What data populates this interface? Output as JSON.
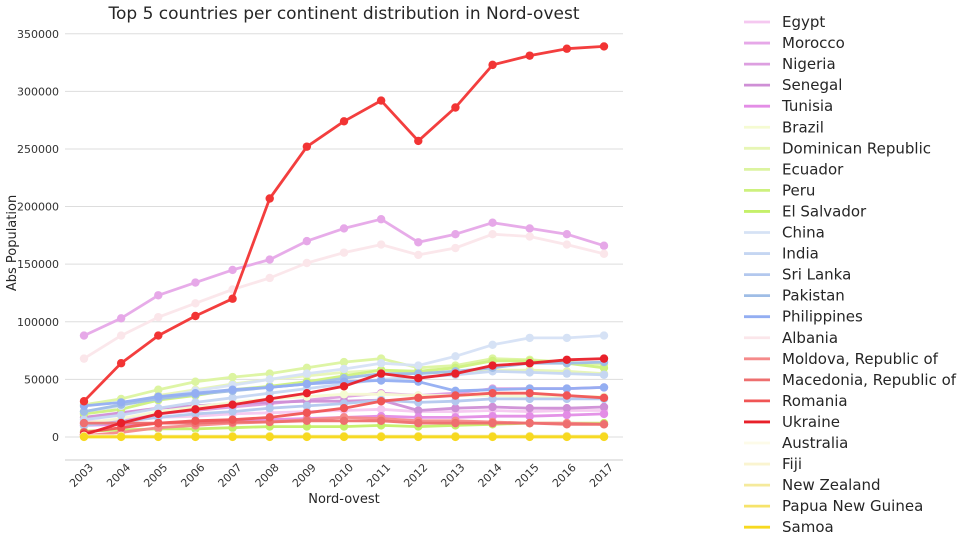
{
  "chart_data": {
    "type": "line",
    "title": "Top 5 countries per continent distribution in Nord-ovest",
    "xlabel": "Nord-ovest",
    "ylabel": "Abs Population",
    "x": [
      "2003",
      "2004",
      "2005",
      "2006",
      "2007",
      "2008",
      "2009",
      "2010",
      "2011",
      "2012",
      "2013",
      "2014",
      "2015",
      "2016",
      "2017"
    ],
    "ylim": [
      -20000,
      355000
    ],
    "yticks": [
      0,
      50000,
      100000,
      150000,
      200000,
      250000,
      300000,
      350000
    ],
    "ytick_labels": [
      "0",
      "50000",
      "100000",
      "150000",
      "200000",
      "250000",
      "300000",
      "350000"
    ],
    "grid": "horizontal",
    "legend_position": "right",
    "series": [
      {
        "name": "Egypt",
        "color": "#f5c8f0",
        "values": [
          13000,
          15000,
          17000,
          18000,
          20000,
          21000,
          22000,
          23000,
          24000,
          22000,
          22000,
          23000,
          22000,
          23000,
          23000
        ]
      },
      {
        "name": "Morocco",
        "color": "#e6a8e8",
        "values": [
          88000,
          103000,
          123000,
          134000,
          145000,
          154000,
          170000,
          181000,
          189000,
          169000,
          176000,
          186000,
          181000,
          176000,
          166000
        ]
      },
      {
        "name": "Nigeria",
        "color": "#dd9fe0",
        "values": [
          12000,
          15000,
          20000,
          23000,
          26000,
          29000,
          32000,
          35000,
          38000,
          36000,
          38000,
          42000,
          42000,
          42000,
          43000
        ]
      },
      {
        "name": "Senegal",
        "color": "#cf8fd6",
        "values": [
          17000,
          21000,
          25000,
          27000,
          29000,
          30000,
          31000,
          31000,
          32000,
          23000,
          25000,
          26000,
          25000,
          25000,
          26000
        ]
      },
      {
        "name": "Tunisia",
        "color": "#e38de6",
        "values": [
          10000,
          11000,
          12000,
          13000,
          14000,
          15000,
          16000,
          17000,
          18000,
          17000,
          17000,
          18000,
          18000,
          19000,
          20000
        ]
      },
      {
        "name": "Brazil",
        "color": "#f5fbd2",
        "values": [
          12000,
          16000,
          22000,
          26000,
          30000,
          33000,
          35000,
          37000,
          37000,
          36000,
          36000,
          36000,
          35000,
          35000,
          35000
        ]
      },
      {
        "name": "Dominican Republic",
        "color": "#e7f6b5",
        "values": [
          22000,
          27000,
          36000,
          41000,
          46000,
          50000,
          53000,
          56000,
          58000,
          55000,
          57000,
          58000,
          58000,
          57000,
          55000
        ]
      },
      {
        "name": "Ecuador",
        "color": "#dcf4a0",
        "values": [
          28000,
          33000,
          41000,
          48000,
          52000,
          55000,
          60000,
          65000,
          68000,
          60000,
          62000,
          68000,
          67000,
          65000,
          63000
        ]
      },
      {
        "name": "Peru",
        "color": "#cdf17e",
        "values": [
          20000,
          24000,
          32000,
          36000,
          41000,
          44000,
          48000,
          53000,
          58000,
          57000,
          60000,
          66000,
          66000,
          64000,
          60000
        ]
      },
      {
        "name": "El Salvador",
        "color": "#c5f06a",
        "values": [
          5000,
          6000,
          7000,
          7000,
          8000,
          9000,
          9000,
          9000,
          10000,
          9000,
          10000,
          11000,
          12000,
          12000,
          12000
        ]
      },
      {
        "name": "China",
        "color": "#d6e2f5",
        "values": [
          22000,
          27000,
          34000,
          40000,
          45000,
          50000,
          55000,
          59000,
          64000,
          62000,
          70000,
          80000,
          86000,
          86000,
          88000
        ]
      },
      {
        "name": "India",
        "color": "#c5d6f2",
        "values": [
          15000,
          19000,
          25000,
          30000,
          34000,
          38000,
          42000,
          46000,
          50000,
          52000,
          54000,
          57000,
          56000,
          55000,
          54000
        ]
      },
      {
        "name": "Sri Lanka",
        "color": "#b3c8ee",
        "values": [
          10000,
          13000,
          17000,
          20000,
          22000,
          25000,
          27000,
          29000,
          32000,
          30000,
          31000,
          33000,
          33000,
          33000,
          33000
        ]
      },
      {
        "name": "Pakistan",
        "color": "#9fbde6",
        "values": [
          22000,
          28000,
          33000,
          37000,
          40000,
          43000,
          46000,
          51000,
          55000,
          55000,
          57000,
          60000,
          64000,
          64000,
          65000
        ]
      },
      {
        "name": "Philippines",
        "color": "#93aef2",
        "values": [
          27000,
          30000,
          35000,
          38000,
          41000,
          43000,
          46000,
          48000,
          49000,
          48000,
          40000,
          41000,
          42000,
          42000,
          43000
        ]
      },
      {
        "name": "Albania",
        "color": "#fbe6ea",
        "values": [
          68000,
          88000,
          104000,
          116000,
          128000,
          138000,
          151000,
          160000,
          167000,
          158000,
          164000,
          176000,
          174000,
          167000,
          159000
        ]
      },
      {
        "name": "Moldova, Republic of",
        "color": "#f58a8a",
        "values": [
          1000,
          4000,
          8000,
          10000,
          12000,
          13000,
          15000,
          17000,
          16000,
          14000,
          14000,
          13000,
          12000,
          12000,
          11000
        ]
      },
      {
        "name": "Macedonia, Republic of",
        "color": "#ee6f6f",
        "values": [
          12000,
          12000,
          12000,
          12000,
          13000,
          13000,
          14000,
          14000,
          14000,
          12000,
          12000,
          12000,
          12000,
          11000,
          11000
        ]
      },
      {
        "name": "Romania",
        "color": "#f05555",
        "values": [
          4000,
          8000,
          12000,
          14000,
          15000,
          17000,
          21000,
          25000,
          31000,
          34000,
          36000,
          38000,
          38000,
          36000,
          34000
        ]
      },
      {
        "name": "Ukraine",
        "color": "#e8202a",
        "values": [
          2000,
          12000,
          20000,
          24000,
          28000,
          33000,
          38000,
          44000,
          55000,
          51000,
          55000,
          62000,
          64000,
          67000,
          68000
        ]
      },
      {
        "name": "Australia",
        "color": "#fdfbe9",
        "values": [
          1000,
          1000,
          1000,
          1000,
          1000,
          1000,
          1000,
          1000,
          1000,
          1000,
          1000,
          1000,
          1000,
          1000,
          1000
        ]
      },
      {
        "name": "Fiji",
        "color": "#faf4d0",
        "values": [
          500,
          500,
          500,
          500,
          500,
          500,
          500,
          500,
          500,
          500,
          500,
          500,
          500,
          500,
          500
        ]
      },
      {
        "name": "New Zealand",
        "color": "#f5ea9c",
        "values": [
          600,
          600,
          600,
          600,
          600,
          600,
          600,
          600,
          600,
          600,
          600,
          600,
          600,
          600,
          600
        ]
      },
      {
        "name": "Papua New Guinea",
        "color": "#f6e36a",
        "values": [
          300,
          300,
          300,
          300,
          300,
          300,
          300,
          300,
          300,
          300,
          300,
          300,
          300,
          300,
          300
        ]
      },
      {
        "name": "Samoa",
        "color": "#f7d920",
        "values": [
          0,
          0,
          0,
          0,
          0,
          0,
          0,
          0,
          0,
          0,
          0,
          0,
          0,
          0,
          0
        ]
      },
      {
        "name": "",
        "color": "#f23434",
        "values": [
          31000,
          64000,
          88000,
          105000,
          120000,
          207000,
          252000,
          274000,
          292000,
          257000,
          286000,
          323000,
          331000,
          337000,
          339000
        ]
      }
    ]
  }
}
